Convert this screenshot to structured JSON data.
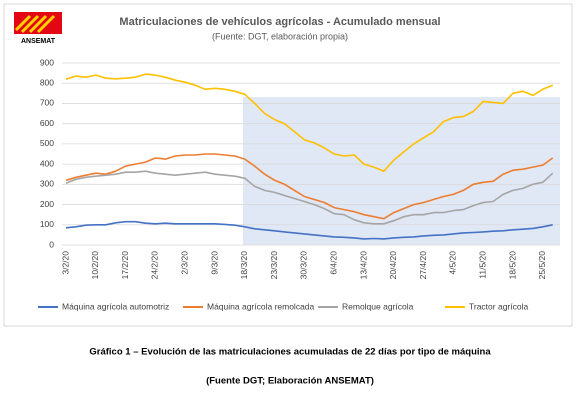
{
  "logo_text": "ANSEMAT",
  "chart_data": {
    "type": "line",
    "title": "Matriculaciones de vehículos agrícolas - Acumulado mensual",
    "subtitle": "(Fuente: DGT, elaboración propia)",
    "categories": [
      "3/2/20",
      null,
      null,
      "10/2/20",
      null,
      null,
      "17/2/20",
      null,
      null,
      "24/2/20",
      null,
      null,
      "2/3/20",
      null,
      null,
      "9/3/20",
      null,
      null,
      "18/3/20",
      null,
      null,
      "23/3/20",
      null,
      null,
      "30/3/20",
      null,
      null,
      "6/4/20",
      null,
      null,
      "13/4/20",
      null,
      null,
      "20/4/20",
      null,
      null,
      "27/4/20",
      null,
      null,
      "4/5/20",
      null,
      null,
      "11/5/20",
      null,
      null,
      "18/5/20",
      null,
      null,
      "25/5/20",
      null
    ],
    "series": [
      {
        "name": "Máquina agrícola automotriz",
        "color": "#4472c4",
        "values": [
          85,
          90,
          98,
          100,
          100,
          110,
          115,
          115,
          108,
          105,
          108,
          105,
          105,
          105,
          105,
          105,
          102,
          98,
          90,
          80,
          75,
          70,
          65,
          60,
          55,
          50,
          45,
          40,
          38,
          35,
          30,
          32,
          30,
          35,
          38,
          40,
          45,
          48,
          50,
          55,
          60,
          62,
          65,
          68,
          70,
          75,
          78,
          82,
          90,
          100
        ]
      },
      {
        "name": "Máquina agrícola remolcada",
        "color": "#ed7d31",
        "values": [
          320,
          335,
          345,
          355,
          350,
          365,
          390,
          400,
          410,
          430,
          425,
          440,
          445,
          445,
          450,
          450,
          445,
          440,
          425,
          390,
          350,
          320,
          300,
          270,
          240,
          225,
          210,
          185,
          175,
          165,
          150,
          140,
          130,
          160,
          180,
          200,
          210,
          225,
          240,
          250,
          270,
          300,
          310,
          315,
          350,
          370,
          375,
          385,
          395,
          430
        ]
      },
      {
        "name": "Remolque agrícola",
        "color": "#a5a5a5",
        "values": [
          305,
          325,
          335,
          340,
          345,
          350,
          360,
          360,
          365,
          355,
          350,
          345,
          350,
          355,
          360,
          350,
          345,
          340,
          330,
          290,
          270,
          260,
          245,
          230,
          215,
          200,
          180,
          155,
          150,
          125,
          110,
          105,
          105,
          120,
          140,
          150,
          150,
          160,
          160,
          170,
          175,
          195,
          210,
          215,
          250,
          270,
          280,
          300,
          310,
          355
        ]
      },
      {
        "name": "Tractor agrícola",
        "color": "#ffc000",
        "values": [
          820,
          835,
          830,
          840,
          825,
          822,
          825,
          830,
          845,
          840,
          830,
          815,
          805,
          790,
          770,
          775,
          770,
          760,
          745,
          700,
          650,
          620,
          600,
          560,
          520,
          505,
          480,
          450,
          440,
          445,
          400,
          385,
          365,
          420,
          460,
          500,
          530,
          560,
          610,
          630,
          635,
          660,
          710,
          705,
          700,
          750,
          760,
          740,
          770,
          790
        ]
      }
    ],
    "ylim": [
      0,
      900
    ],
    "yticks": [
      0,
      100,
      200,
      300,
      400,
      500,
      600,
      700,
      800,
      900
    ],
    "grid": true
  },
  "caption": "Gráfico 1 – Evolución de las matriculaciones acumuladas de 22 días por tipo de máquina",
  "source": "(Fuente DGT; Elaboración ANSEMAT)"
}
